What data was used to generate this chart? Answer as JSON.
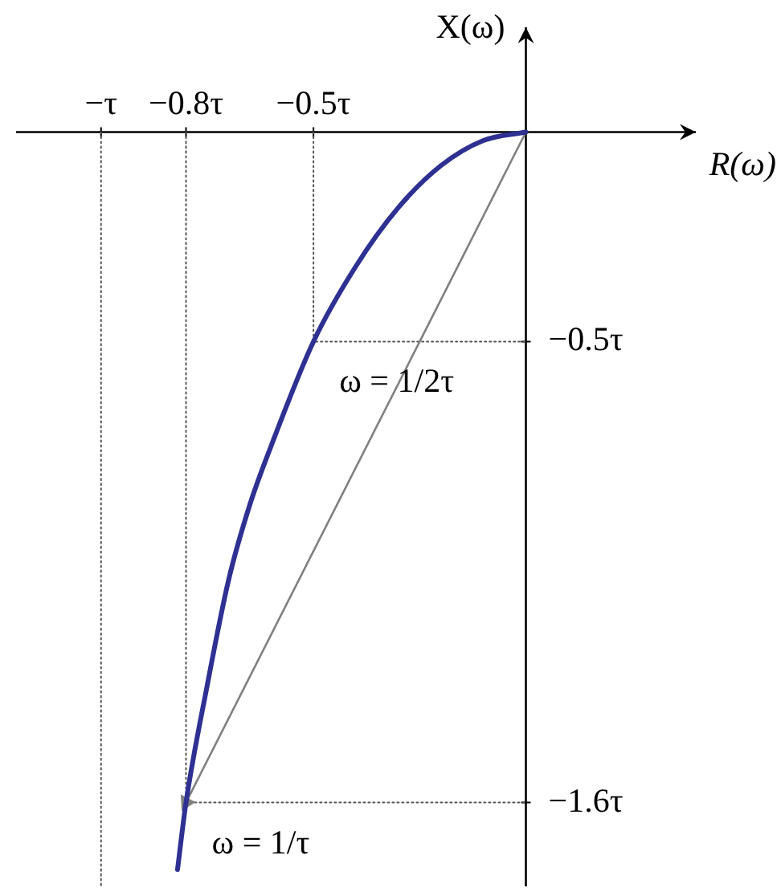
{
  "chart_data": {
    "type": "line",
    "xlabel": "R(ω)",
    "ylabel": "X(ω)",
    "xlim": [
      -1.2,
      0.4
    ],
    "ylim": [
      -1.8,
      0.25
    ],
    "xticks": [
      {
        "value": -1,
        "label": "−τ"
      },
      {
        "value": -0.8,
        "label": "−0.8τ"
      },
      {
        "value": -0.5,
        "label": "−0.5τ"
      }
    ],
    "yticks": [
      {
        "value": -0.5,
        "label": "−0.5τ"
      },
      {
        "value": -1.6,
        "label": "−1.6τ"
      }
    ],
    "series": [
      {
        "color": "#2e3192",
        "x": [
          0,
          -0.1,
          -0.2,
          -0.3,
          -0.4,
          -0.5,
          -0.6,
          -0.65,
          -0.7,
          -0.75,
          -0.8,
          -0.82
        ],
        "values": [
          0,
          -0.02,
          -0.08,
          -0.18,
          -0.32,
          -0.5,
          -0.75,
          -0.89,
          -1.07,
          -1.32,
          -1.6,
          -1.76
        ]
      },
      {
        "color": "#808080",
        "x": [
          0,
          -0.8
        ],
        "values": [
          0,
          -1.6
        ],
        "marker": "triangle"
      },
      {
        "color": "#555555",
        "line_style": "dotted",
        "x": [
          -1,
          -1
        ],
        "values": [
          0,
          -1.8
        ]
      },
      {
        "color": "#555555",
        "line_style": "dotted",
        "x": [
          -0.5,
          -0.5,
          0
        ],
        "values": [
          0,
          -0.5,
          -0.5
        ]
      },
      {
        "color": "#555555",
        "line_style": "dotted",
        "x": [
          -0.8,
          -0.8,
          0
        ],
        "values": [
          0,
          -1.6,
          -1.6
        ]
      }
    ],
    "annotations": [
      {
        "text": "ω = 1/2τ",
        "x": -0.5,
        "y": -0.5
      },
      {
        "text": "ω = 1/τ",
        "x": -0.8,
        "y": -1.6
      }
    ]
  }
}
